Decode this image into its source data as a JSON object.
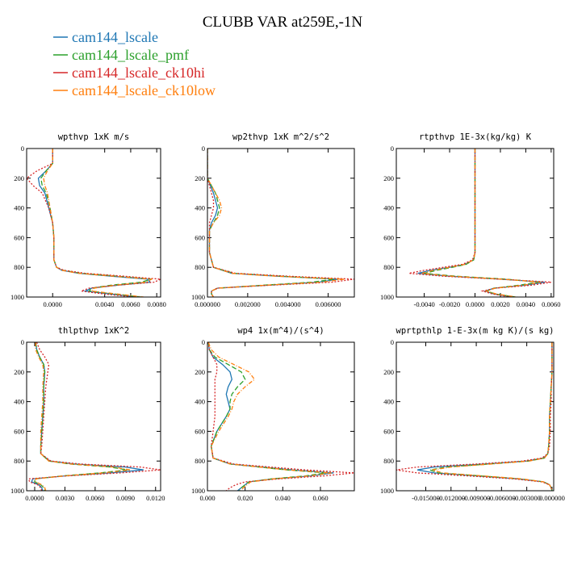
{
  "title": "CLUBB VAR at259E,-1N",
  "legend": [
    {
      "name": "cam144_lscale",
      "color": "#1f77b4",
      "dash": ""
    },
    {
      "name": "cam144_lscale_pmf",
      "color": "#2ca02c",
      "dash": "6,3"
    },
    {
      "name": "cam144_lscale_ck10hi",
      "color": "#d62728",
      "dash": "2,2"
    },
    {
      "name": "cam144_lscale_ck10low",
      "color": "#ff7f0e",
      "dash": "5,2,1,2"
    }
  ],
  "chart_data": [
    {
      "type": "line",
      "title": "wpthvp  1xK m/s",
      "ylim": [
        1000,
        0
      ],
      "yticks": [
        0,
        200,
        400,
        600,
        800,
        1000
      ],
      "xlim": [
        -0.002,
        0.0083
      ],
      "xticks": [
        0.0,
        0.004,
        0.006,
        0.008
      ],
      "xtick_labels": [
        "0.0000",
        "0.0040",
        "0.0060",
        "0.0080"
      ],
      "y": [
        0,
        100,
        150,
        200,
        250,
        300,
        400,
        500,
        600,
        700,
        750,
        800,
        820,
        840,
        860,
        880,
        900,
        920,
        940,
        960,
        980,
        1000
      ],
      "series": [
        {
          "values": [
            0.0,
            0.0,
            -0.0005,
            -0.0011,
            -0.001,
            -0.0006,
            -0.0003,
            0.0,
            0.0001,
            0.0001,
            0.0001,
            0.0003,
            0.0007,
            0.002,
            0.0045,
            0.0073,
            0.0075,
            0.005,
            0.003,
            0.0025,
            0.0045,
            0.0065
          ]
        },
        {
          "values": [
            0.0,
            0.0,
            -0.0005,
            -0.0009,
            -0.0008,
            -0.0005,
            -0.0002,
            0.0,
            0.0001,
            0.0001,
            0.0001,
            0.0003,
            0.0008,
            0.0022,
            0.005,
            0.0076,
            0.0068,
            0.0045,
            0.003,
            0.0028,
            0.0048,
            0.0068
          ]
        },
        {
          "values": [
            0.0,
            0.0,
            -0.0012,
            -0.002,
            -0.0015,
            -0.0008,
            -0.0003,
            0.0,
            0.0001,
            0.0001,
            0.0001,
            0.0003,
            0.0009,
            0.0025,
            0.0055,
            0.0083,
            0.0078,
            0.005,
            0.0028,
            0.0022,
            0.004,
            0.0062
          ]
        },
        {
          "values": [
            0.0,
            0.0,
            -0.0004,
            -0.0007,
            -0.0006,
            -0.0004,
            -0.0002,
            0.0,
            0.0001,
            0.0001,
            0.0001,
            0.0003,
            0.0007,
            0.002,
            0.0047,
            0.0076,
            0.0072,
            0.0048,
            0.0032,
            0.003,
            0.005,
            0.007
          ]
        }
      ]
    },
    {
      "type": "line",
      "title": "wp2thvp  1xK m^2/s^2",
      "ylim": [
        1000,
        0
      ],
      "yticks": [
        0,
        200,
        400,
        600,
        800,
        1000
      ],
      "xlim": [
        0.0,
        0.0073
      ],
      "xticks": [
        0.0,
        0.002,
        0.004,
        0.006
      ],
      "xtick_labels": [
        "0.000000",
        "0.002000",
        "0.004000",
        "0.006000"
      ],
      "y": [
        0,
        100,
        200,
        250,
        300,
        350,
        400,
        450,
        500,
        550,
        600,
        700,
        800,
        840,
        860,
        880,
        900,
        920,
        940,
        960,
        980,
        1000
      ],
      "series": [
        {
          "values": [
            0.0,
            0.0,
            0.0,
            0.00015,
            0.0003,
            0.0004,
            0.0005,
            0.0004,
            0.0002,
            0.0001,
            0.0001,
            0.0001,
            0.0003,
            0.0012,
            0.0035,
            0.0065,
            0.0055,
            0.003,
            0.0005,
            0.0002,
            0.0002,
            0.0003
          ]
        },
        {
          "values": [
            0.0,
            0.0,
            0.0,
            0.0002,
            0.0004,
            0.0005,
            0.0006,
            0.0005,
            0.0003,
            0.0001,
            0.0001,
            0.0001,
            0.0003,
            0.0013,
            0.0037,
            0.0063,
            0.0052,
            0.0028,
            0.0005,
            0.0002,
            0.0002,
            0.0003
          ]
        },
        {
          "values": [
            0.0,
            0.0,
            0.0,
            0.0001,
            0.0002,
            0.0003,
            0.0003,
            0.0002,
            0.0001,
            0.0001,
            0.0001,
            0.0001,
            0.0003,
            0.0014,
            0.004,
            0.0073,
            0.0062,
            0.0032,
            0.0005,
            0.0002,
            0.0002,
            0.0003
          ]
        },
        {
          "values": [
            0.0,
            0.0,
            0.0,
            0.0002,
            0.0004,
            0.0006,
            0.0007,
            0.0006,
            0.0003,
            0.0001,
            0.0001,
            0.0001,
            0.0003,
            0.0012,
            0.0034,
            0.0068,
            0.0057,
            0.0029,
            0.0005,
            0.0002,
            0.0002,
            0.0003
          ]
        }
      ]
    },
    {
      "type": "line",
      "title": "rtpthvp  1E-3x(kg/kg) K",
      "ylim": [
        1000,
        0
      ],
      "yticks": [
        0,
        200,
        400,
        600,
        800,
        1000
      ],
      "xlim": [
        -0.0062,
        0.0062
      ],
      "xticks": [
        -0.004,
        -0.002,
        0.0,
        0.002,
        0.004,
        0.006
      ],
      "xtick_labels": [
        "-0.0040",
        "-0.0020",
        "0.0000",
        "0.0020",
        "0.0040",
        "0.0060"
      ],
      "y": [
        0,
        200,
        400,
        600,
        700,
        750,
        780,
        800,
        820,
        840,
        860,
        880,
        900,
        920,
        940,
        960,
        980,
        1000
      ],
      "series": [
        {
          "values": [
            0.0,
            0.0,
            0.0,
            0.0,
            0.0,
            -0.0001,
            -0.0008,
            -0.002,
            -0.0035,
            -0.0045,
            -0.002,
            0.002,
            0.0055,
            0.004,
            0.0015,
            0.0008,
            0.0015,
            0.003
          ]
        },
        {
          "values": [
            0.0,
            0.0,
            0.0,
            0.0,
            0.0,
            -0.0001,
            -0.0007,
            -0.0018,
            -0.003,
            -0.004,
            -0.0015,
            0.0025,
            0.005,
            0.0035,
            0.0015,
            0.0009,
            0.0016,
            0.0032
          ]
        },
        {
          "values": [
            0.0,
            0.0,
            0.0,
            0.0,
            0.0,
            -0.0002,
            -0.001,
            -0.0025,
            -0.004,
            -0.0052,
            -0.0025,
            0.002,
            0.006,
            0.0045,
            0.0016,
            0.0006,
            0.0014,
            0.0028
          ]
        },
        {
          "values": [
            0.0,
            0.0,
            0.0,
            0.0,
            0.0,
            -0.0001,
            -0.0008,
            -0.002,
            -0.0033,
            -0.0042,
            -0.0018,
            0.0022,
            0.0052,
            0.0038,
            0.0016,
            0.0009,
            0.0017,
            0.0033
          ]
        }
      ]
    },
    {
      "type": "line",
      "title": "thlpthvp  1xK^2",
      "ylim": [
        1000,
        0
      ],
      "yticks": [
        0,
        200,
        400,
        600,
        800,
        1000
      ],
      "xlim": [
        -0.0008,
        0.0125
      ],
      "xticks": [
        0.0,
        0.003,
        0.006,
        0.009,
        0.012
      ],
      "xtick_labels": [
        "0.0000",
        "0.0030",
        "0.0060",
        "0.0090",
        "0.0120"
      ],
      "y": [
        0,
        50,
        100,
        150,
        200,
        300,
        400,
        500,
        600,
        700,
        750,
        800,
        820,
        840,
        860,
        880,
        900,
        920,
        940,
        960,
        980,
        1000
      ],
      "series": [
        {
          "values": [
            0.0001,
            0.0002,
            0.0005,
            0.0009,
            0.001,
            0.0009,
            0.0009,
            0.0008,
            0.0007,
            0.0006,
            0.0006,
            0.0015,
            0.004,
            0.009,
            0.0108,
            0.0075,
            0.003,
            -0.0002,
            -0.0003,
            0.0004,
            0.0007,
            0.0008
          ]
        },
        {
          "values": [
            0.0001,
            0.0002,
            0.0005,
            0.0009,
            0.001,
            0.0009,
            0.0009,
            0.0008,
            0.0007,
            0.0006,
            0.0006,
            0.0014,
            0.0035,
            0.0075,
            0.0092,
            0.0065,
            0.0028,
            0.0,
            0.0,
            0.0006,
            0.0009,
            0.001
          ]
        },
        {
          "values": [
            0.0002,
            0.0005,
            0.001,
            0.0014,
            0.0013,
            0.0011,
            0.001,
            0.0009,
            0.0008,
            0.0007,
            0.0006,
            0.0016,
            0.0045,
            0.0105,
            0.0125,
            0.0085,
            0.0032,
            -0.0006,
            -0.0005,
            0.0003,
            0.0006,
            0.0007
          ]
        },
        {
          "values": [
            0.0001,
            0.0001,
            0.0004,
            0.0008,
            0.0009,
            0.0008,
            0.0008,
            0.0007,
            0.0006,
            0.0006,
            0.0006,
            0.0014,
            0.0036,
            0.0078,
            0.0095,
            0.0068,
            0.0029,
            0.0001,
            0.0001,
            0.0007,
            0.001,
            0.0011
          ]
        }
      ]
    },
    {
      "type": "line",
      "title": "wp4  1x(m^4)/(s^4)",
      "ylim": [
        1000,
        0
      ],
      "yticks": [
        0,
        200,
        400,
        600,
        800,
        1000
      ],
      "xlim": [
        0.0,
        0.078
      ],
      "xticks": [
        0.0,
        0.02,
        0.04,
        0.06
      ],
      "xtick_labels": [
        "0.000",
        "0.020",
        "0.040",
        "0.060"
      ],
      "y": [
        0,
        50,
        100,
        150,
        200,
        250,
        300,
        350,
        400,
        450,
        500,
        600,
        700,
        780,
        820,
        860,
        880,
        900,
        920,
        940,
        960,
        980,
        1000
      ],
      "series": [
        {
          "values": [
            0.0005,
            0.001,
            0.003,
            0.008,
            0.012,
            0.013,
            0.011,
            0.01,
            0.011,
            0.012,
            0.01,
            0.005,
            0.002,
            0.003,
            0.012,
            0.045,
            0.067,
            0.055,
            0.035,
            0.022,
            0.02,
            0.018,
            0.016
          ]
        },
        {
          "values": [
            0.0005,
            0.001,
            0.004,
            0.011,
            0.018,
            0.02,
            0.016,
            0.013,
            0.012,
            0.012,
            0.01,
            0.005,
            0.002,
            0.003,
            0.012,
            0.042,
            0.063,
            0.052,
            0.034,
            0.022,
            0.02,
            0.018,
            0.017
          ]
        },
        {
          "values": [
            0.0005,
            0.001,
            0.003,
            0.005,
            0.005,
            0.004,
            0.004,
            0.004,
            0.004,
            0.004,
            0.004,
            0.003,
            0.002,
            0.003,
            0.014,
            0.052,
            0.078,
            0.062,
            0.038,
            0.02,
            0.015,
            0.012,
            0.01
          ]
        },
        {
          "values": [
            0.0005,
            0.002,
            0.006,
            0.014,
            0.022,
            0.025,
            0.02,
            0.016,
            0.014,
            0.013,
            0.011,
            0.006,
            0.002,
            0.003,
            0.012,
            0.043,
            0.066,
            0.054,
            0.035,
            0.023,
            0.021,
            0.019,
            0.018
          ]
        }
      ]
    },
    {
      "type": "line",
      "title": "wprtpthlp  1-E-3x(m kg K)/(s kg)",
      "ylim": [
        1000,
        0
      ],
      "yticks": [
        0,
        200,
        400,
        600,
        800,
        1000
      ],
      "xlim": [
        -0.0185,
        0.0002
      ],
      "xticks": [
        -0.015,
        -0.012,
        -0.009,
        -0.006,
        -0.003,
        0.0
      ],
      "xtick_labels": [
        "-0.015000",
        "-0.012000",
        "-0.009000",
        "-0.006000",
        "-0.003000",
        "0.000000"
      ],
      "y": [
        0,
        200,
        300,
        400,
        500,
        600,
        700,
        750,
        780,
        800,
        820,
        840,
        860,
        880,
        900,
        920,
        940,
        960,
        980,
        1000
      ],
      "series": [
        {
          "values": [
            0.0,
            0.0,
            -0.0001,
            -0.0002,
            -0.0003,
            -0.0003,
            -0.0004,
            -0.0005,
            -0.001,
            -0.003,
            -0.008,
            -0.014,
            -0.016,
            -0.014,
            -0.009,
            -0.004,
            -0.001,
            -0.0003,
            -0.0001,
            0.0
          ]
        },
        {
          "values": [
            0.0,
            0.0,
            -0.0001,
            -0.0002,
            -0.0003,
            -0.0003,
            -0.0004,
            -0.0005,
            -0.0009,
            -0.0028,
            -0.0075,
            -0.0125,
            -0.0145,
            -0.0135,
            -0.0085,
            -0.0038,
            -0.001,
            -0.0003,
            -0.0001,
            0.0
          ]
        },
        {
          "values": [
            0.0,
            0.0,
            -0.0001,
            -0.0001,
            -0.0002,
            -0.0002,
            -0.0003,
            -0.0005,
            -0.0012,
            -0.0035,
            -0.009,
            -0.016,
            -0.0185,
            -0.016,
            -0.01,
            -0.0045,
            -0.0012,
            -0.0003,
            -0.0001,
            0.0
          ]
        },
        {
          "values": [
            0.0,
            0.0,
            -0.0001,
            -0.0002,
            -0.0003,
            -0.0003,
            -0.0004,
            -0.0005,
            -0.0009,
            -0.0027,
            -0.0072,
            -0.012,
            -0.0142,
            -0.013,
            -0.0082,
            -0.0036,
            -0.001,
            -0.0003,
            -0.0001,
            0.0
          ]
        }
      ]
    }
  ]
}
